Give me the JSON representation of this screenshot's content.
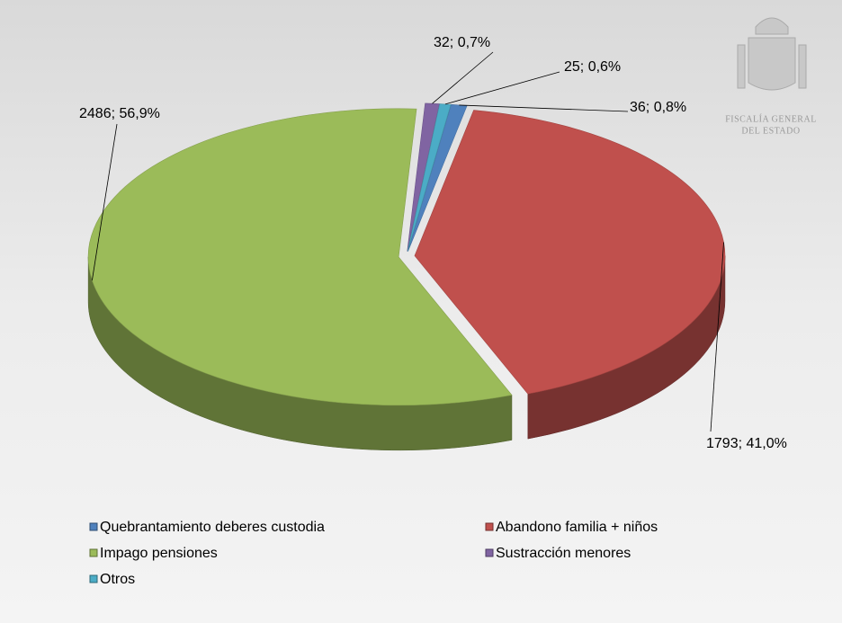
{
  "chart_data": {
    "type": "pie3d",
    "categories": [
      "Quebrantamiento deberes custodia",
      "Abandono familia + niños",
      "Impago pensiones",
      "Sustracción menores",
      "Otros"
    ],
    "values": [
      36,
      1793,
      2486,
      32,
      25
    ],
    "value_labels": [
      "36; 0,8%",
      "1793; 41,0%",
      "2486; 56,9%",
      "32; 0,7%",
      "25; 0,6%"
    ],
    "colors": [
      "#4f81bd",
      "#c0504d",
      "#9bbb59",
      "#8064a2",
      "#4bacc6"
    ],
    "legend": "bottom"
  },
  "logo": {
    "line1": "FISCALÍA GENERAL",
    "line2": "DEL ESTADO"
  }
}
